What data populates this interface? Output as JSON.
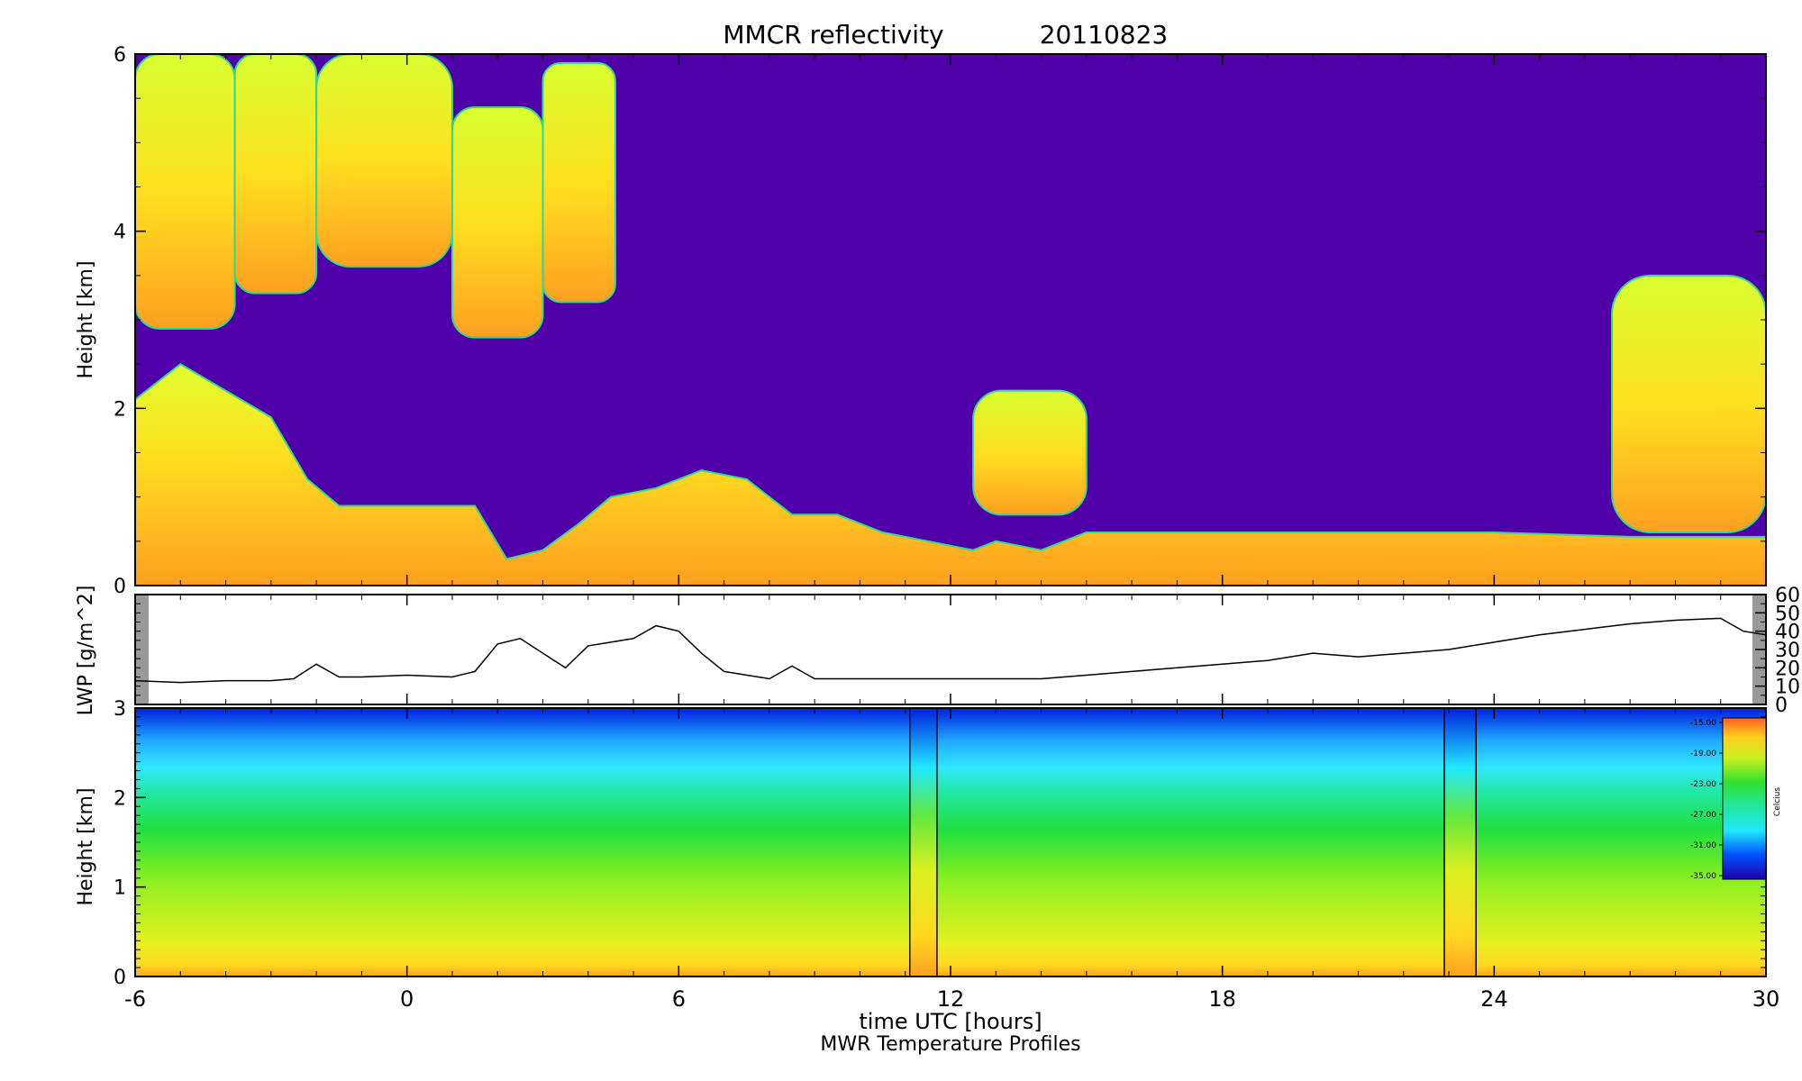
{
  "chart_data": [
    {
      "panel": "reflectivity",
      "type": "heatmap",
      "title": "MMCR reflectivity",
      "date": "20110823",
      "xlabel": "time UTC [hours]",
      "ylabel": "Height [km]",
      "xlim": [
        -6,
        30
      ],
      "ylim": [
        0,
        6
      ],
      "x_ticks": [
        "-6",
        "0",
        "6",
        "12",
        "18",
        "24",
        "30"
      ],
      "y_ticks": [
        "0",
        "2",
        "4",
        "6"
      ],
      "background_color": "#5000a8",
      "colors": {
        "low": "#ffa020",
        "mid": "#ffe020",
        "high": "#d8ff30",
        "edge": "#30d890"
      },
      "cloud_layers": [
        {
          "name": "boundary-layer",
          "tops": [
            [
              -6,
              2.1
            ],
            [
              -5,
              2.5
            ],
            [
              -4,
              2.2
            ],
            [
              -3,
              1.9
            ],
            [
              -2.2,
              1.2
            ],
            [
              -1.5,
              0.9
            ],
            [
              0,
              0.9
            ],
            [
              1.5,
              0.9
            ],
            [
              2.2,
              0.3
            ],
            [
              3,
              0.4
            ],
            [
              3.8,
              0.7
            ],
            [
              4.5,
              1.0
            ],
            [
              5.5,
              1.1
            ],
            [
              6.5,
              1.3
            ],
            [
              7.5,
              1.2
            ],
            [
              8.5,
              0.8
            ],
            [
              9.5,
              0.8
            ],
            [
              10.5,
              0.6
            ],
            [
              11.5,
              0.5
            ],
            [
              12.5,
              0.4
            ],
            [
              13,
              0.5
            ],
            [
              14,
              0.4
            ],
            [
              15,
              0.6
            ],
            [
              18,
              0.6
            ],
            [
              21,
              0.6
            ],
            [
              24,
              0.6
            ],
            [
              27,
              0.55
            ],
            [
              30,
              0.55
            ]
          ]
        },
        {
          "name": "mid-level-13h",
          "x": [
            12.5,
            15.0
          ],
          "base": 0.8,
          "top": 2.2
        },
        {
          "name": "upper-morning-1",
          "x": [
            -6,
            -3.8
          ],
          "base": 2.9,
          "top": 6.0
        },
        {
          "name": "upper-morning-2",
          "x": [
            -3.8,
            -2.0
          ],
          "base": 3.3,
          "top": 6.0
        },
        {
          "name": "upper-morning-3",
          "x": [
            -2.0,
            1.0
          ],
          "base": 3.6,
          "top": 6.0
        },
        {
          "name": "upper-morning-4",
          "x": [
            1.0,
            3.0
          ],
          "base": 2.8,
          "top": 5.4
        },
        {
          "name": "upper-morning-5",
          "x": [
            3.0,
            4.6
          ],
          "base": 3.2,
          "top": 5.9
        },
        {
          "name": "upper-evening",
          "x": [
            26.6,
            30
          ],
          "base": 0.6,
          "top": 3.5
        }
      ]
    },
    {
      "panel": "lwp",
      "type": "line",
      "ylabel": "LWP [g/m^2]",
      "xlim": [
        -6,
        30
      ],
      "ylim": [
        0,
        60
      ],
      "y_ticks": [
        "0",
        "10",
        "20",
        "30",
        "40",
        "50",
        "60"
      ],
      "x": [
        -6,
        -5,
        -4,
        -3,
        -2.5,
        -2,
        -1.5,
        -1,
        0,
        1,
        1.5,
        2,
        2.5,
        3,
        3.5,
        4,
        4.5,
        5,
        5.5,
        6,
        6.5,
        7,
        8,
        8.5,
        9,
        10,
        11,
        12,
        13,
        14,
        15,
        16,
        17,
        18,
        19,
        20,
        21,
        22,
        23,
        24,
        25,
        26,
        27,
        28,
        29,
        29.5,
        30
      ],
      "values": [
        13,
        12,
        13,
        13,
        14,
        22,
        15,
        15,
        16,
        15,
        18,
        33,
        36,
        28,
        20,
        32,
        34,
        36,
        43,
        40,
        28,
        18,
        14,
        21,
        14,
        14,
        14,
        14,
        14,
        14,
        16,
        18,
        20,
        22,
        24,
        28,
        26,
        28,
        30,
        34,
        38,
        41,
        44,
        46,
        47,
        40,
        38
      ],
      "line_color": "#000000"
    },
    {
      "panel": "temperature",
      "type": "heatmap",
      "ylabel": "Height [km]",
      "xlim": [
        -6,
        30
      ],
      "ylim": [
        0,
        3
      ],
      "y_ticks": [
        "0",
        "1",
        "2",
        "3"
      ],
      "colorbar": {
        "labels": [
          "-15.00",
          "-19.00",
          "-23.00",
          "-27.00",
          "-31.00",
          "-35.00"
        ],
        "values": [
          -15,
          -19,
          -23,
          -27,
          -31,
          -35
        ],
        "unit": "Celcius"
      },
      "gaps": [
        {
          "x": [
            11.1,
            11.7
          ]
        },
        {
          "x": [
            22.9,
            23.6
          ]
        }
      ],
      "footer": "MWR Temperature Profiles"
    }
  ]
}
